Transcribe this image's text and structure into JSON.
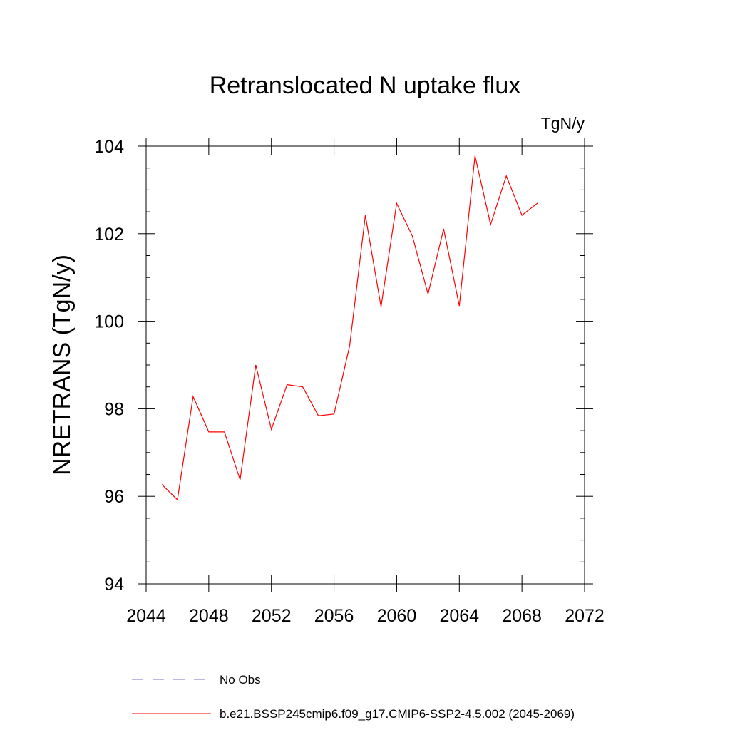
{
  "chart_data": {
    "type": "line",
    "title": "Retranslocated N uptake flux",
    "units": "TgN/y",
    "xlabel": "",
    "ylabel": "NRETRANS  (TgN/y)",
    "xlim": [
      2044,
      2072
    ],
    "ylim": [
      94,
      104
    ],
    "x_ticks": [
      2044,
      2048,
      2052,
      2056,
      2060,
      2064,
      2068,
      2072
    ],
    "y_ticks": [
      94,
      96,
      98,
      100,
      102,
      104
    ],
    "grid": false,
    "legend_position": "bottom",
    "series": [
      {
        "name": "b.e21.BSSP245cmip6.f09_g17.CMIP6-SSP2-4.5.002 (2045-2069)",
        "color": "#ff0000",
        "style": "solid",
        "x": [
          2045,
          2046,
          2047,
          2048,
          2049,
          2050,
          2051,
          2052,
          2053,
          2054,
          2055,
          2056,
          2057,
          2058,
          2059,
          2060,
          2061,
          2062,
          2063,
          2064,
          2065,
          2066,
          2067,
          2068,
          2069
        ],
        "y": [
          96.27,
          95.92,
          98.28,
          97.47,
          97.47,
          96.38,
          99.0,
          97.53,
          98.55,
          98.5,
          97.84,
          97.88,
          99.44,
          102.42,
          100.33,
          102.69,
          101.95,
          100.62,
          102.11,
          100.35,
          103.78,
          102.21,
          103.32,
          102.42,
          102.7
        ]
      },
      {
        "name": "No Obs",
        "color": "#7070c0",
        "style": "dashed",
        "x": [],
        "y": []
      }
    ]
  }
}
